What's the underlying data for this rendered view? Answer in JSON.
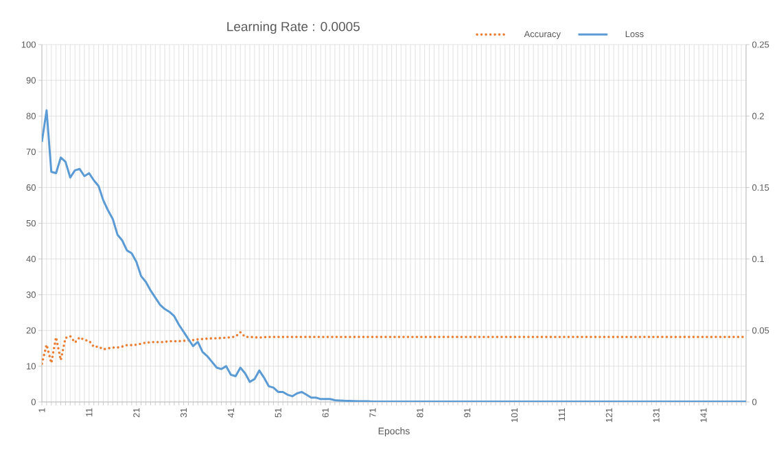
{
  "chart_data": {
    "type": "line",
    "title": "Learning Rate : 0.0005",
    "xlabel": "Epochs",
    "categories": [
      "1",
      null,
      null,
      null,
      null,
      null,
      null,
      null,
      null,
      null,
      "11",
      null,
      null,
      null,
      null,
      null,
      null,
      null,
      null,
      null,
      "21",
      null,
      null,
      null,
      null,
      null,
      null,
      null,
      null,
      null,
      "31",
      null,
      null,
      null,
      null,
      null,
      null,
      null,
      null,
      null,
      "41",
      null,
      null,
      null,
      null,
      null,
      null,
      null,
      null,
      null,
      "51",
      null,
      null,
      null,
      null,
      null,
      null,
      null,
      null,
      null,
      "61",
      null,
      null,
      null,
      null,
      null,
      null,
      null,
      null,
      null,
      "71",
      null,
      null,
      null,
      null,
      null,
      null,
      null,
      null,
      null,
      "81",
      null,
      null,
      null,
      null,
      null,
      null,
      null,
      null,
      null,
      "91",
      null,
      null,
      null,
      null,
      null,
      null,
      null,
      null,
      null,
      "101",
      null,
      null,
      null,
      null,
      null,
      null,
      null,
      null,
      null,
      "111",
      null,
      null,
      null,
      null,
      null,
      null,
      null,
      null,
      null,
      "121",
      null,
      null,
      null,
      null,
      null,
      null,
      null,
      null,
      null,
      "131",
      null,
      null,
      null,
      null,
      null,
      null,
      null,
      null,
      null,
      "141",
      null,
      null,
      null,
      null,
      null,
      null,
      null,
      null,
      null
    ],
    "series": [
      {
        "name": "Accuracy",
        "color": "#ed7d31",
        "line_style": "dotted",
        "values": [
          10.7,
          16.0,
          10.9,
          18.1,
          11.7,
          17.9,
          18.4,
          16.6,
          18.1,
          17.3,
          17.1,
          15.4,
          15.5,
          14.7,
          15.0,
          15.2,
          15.2,
          15.5,
          15.9,
          15.9,
          16.0,
          16.3,
          16.6,
          16.7,
          16.8,
          16.7,
          16.8,
          17.0,
          17.0,
          17.0,
          17.1,
          17.2,
          17.3,
          17.5,
          17.6,
          17.7,
          17.8,
          17.8,
          17.9,
          18.0,
          18.1,
          18.3,
          19.5,
          18.2,
          18.2,
          18.1,
          18.0,
          18.1,
          18.2,
          18.2,
          18.2,
          18.2,
          18.2,
          18.2,
          18.2,
          18.2,
          18.2,
          18.2,
          18.2,
          18.2,
          18.2,
          18.2,
          18.2,
          18.2,
          18.2,
          18.2,
          18.2,
          18.2,
          18.2,
          18.2,
          18.2,
          18.2,
          18.2,
          18.2,
          18.2,
          18.2,
          18.2,
          18.2,
          18.2,
          18.2,
          18.2,
          18.2,
          18.2,
          18.2,
          18.2,
          18.2,
          18.2,
          18.2,
          18.2,
          18.2,
          18.2,
          18.2,
          18.2,
          18.2,
          18.2,
          18.2,
          18.2,
          18.2,
          18.2,
          18.2,
          18.2,
          18.2,
          18.2,
          18.2,
          18.2,
          18.2,
          18.2,
          18.2,
          18.2,
          18.2,
          18.2,
          18.2,
          18.2,
          18.2,
          18.2,
          18.2,
          18.2,
          18.2,
          18.2,
          18.2,
          18.2,
          18.2,
          18.2,
          18.2,
          18.2,
          18.2,
          18.2,
          18.2,
          18.2,
          18.2,
          18.2,
          18.2,
          18.2,
          18.2,
          18.2,
          18.2,
          18.2,
          18.2,
          18.2,
          18.2,
          18.2,
          18.2,
          18.2,
          18.2,
          18.2,
          18.2,
          18.2,
          18.2,
          18.2,
          18.2
        ]
      },
      {
        "name": "Loss",
        "color": "#5b9bd5",
        "line_style": "solid",
        "axis": "y2",
        "values": [
          0.182,
          0.204,
          0.161,
          0.16,
          0.171,
          0.168,
          0.157,
          0.162,
          0.163,
          0.158,
          0.16,
          0.155,
          0.151,
          0.141,
          0.134,
          0.128,
          0.117,
          0.113,
          0.106,
          0.104,
          0.098,
          0.088,
          0.084,
          0.078,
          0.073,
          0.068,
          0.065,
          0.063,
          0.06,
          0.054,
          0.049,
          0.044,
          0.039,
          0.042,
          0.035,
          0.032,
          0.028,
          0.024,
          0.023,
          0.025,
          0.019,
          0.018,
          0.024,
          0.02,
          0.014,
          0.016,
          0.022,
          0.017,
          0.011,
          0.01,
          0.007,
          0.007,
          0.005,
          0.004,
          0.006,
          0.007,
          0.005,
          0.003,
          0.003,
          0.002,
          0.002,
          0.002,
          0.0012,
          0.001,
          0.0008,
          0.0007,
          0.0006,
          0.0005,
          0.0005,
          0.0005,
          0.0003,
          0.0003,
          0.0003,
          0.0003,
          0.0003,
          0.0003,
          0.0003,
          0.0003,
          0.0003,
          0.0003,
          0.0003,
          0.0003,
          0.0003,
          0.0003,
          0.0003,
          0.0003,
          0.0003,
          0.0003,
          0.0003,
          0.0003,
          0.0003,
          0.0003,
          0.0003,
          0.0003,
          0.0003,
          0.0003,
          0.0003,
          0.0003,
          0.0003,
          0.0003,
          0.0003,
          0.0003,
          0.0003,
          0.0003,
          0.0003,
          0.0002,
          0.0002,
          0.0002,
          0.0002,
          0.0002,
          0.0002,
          0.0002,
          0.0002,
          0.0002,
          0.0002,
          0.0002,
          0.0002,
          0.0002,
          0.0002,
          0.0002,
          0.0002,
          0.0002,
          0.0002,
          0.0002,
          0.0002,
          0.0002,
          0.0002,
          0.0002,
          0.0002,
          0.0002,
          0.0002,
          0.0002,
          0.0002,
          0.0002,
          0.0002,
          0.0002,
          0.0002,
          0.0002,
          0.0002,
          0.0002,
          0.0002,
          0.0002,
          0.0002,
          0.0002,
          0.0002,
          0.0002,
          0.0002,
          0.0002,
          0.0002,
          0.0002
        ]
      }
    ],
    "ylim": [
      0,
      100
    ],
    "yticks": [
      0,
      10,
      20,
      30,
      40,
      50,
      60,
      70,
      80,
      90,
      100
    ],
    "y2lim": [
      0,
      0.25
    ],
    "y2ticks": [
      0,
      0.05,
      0.1,
      0.15,
      0.2,
      0.25
    ],
    "grid": true,
    "legend": "top right"
  }
}
